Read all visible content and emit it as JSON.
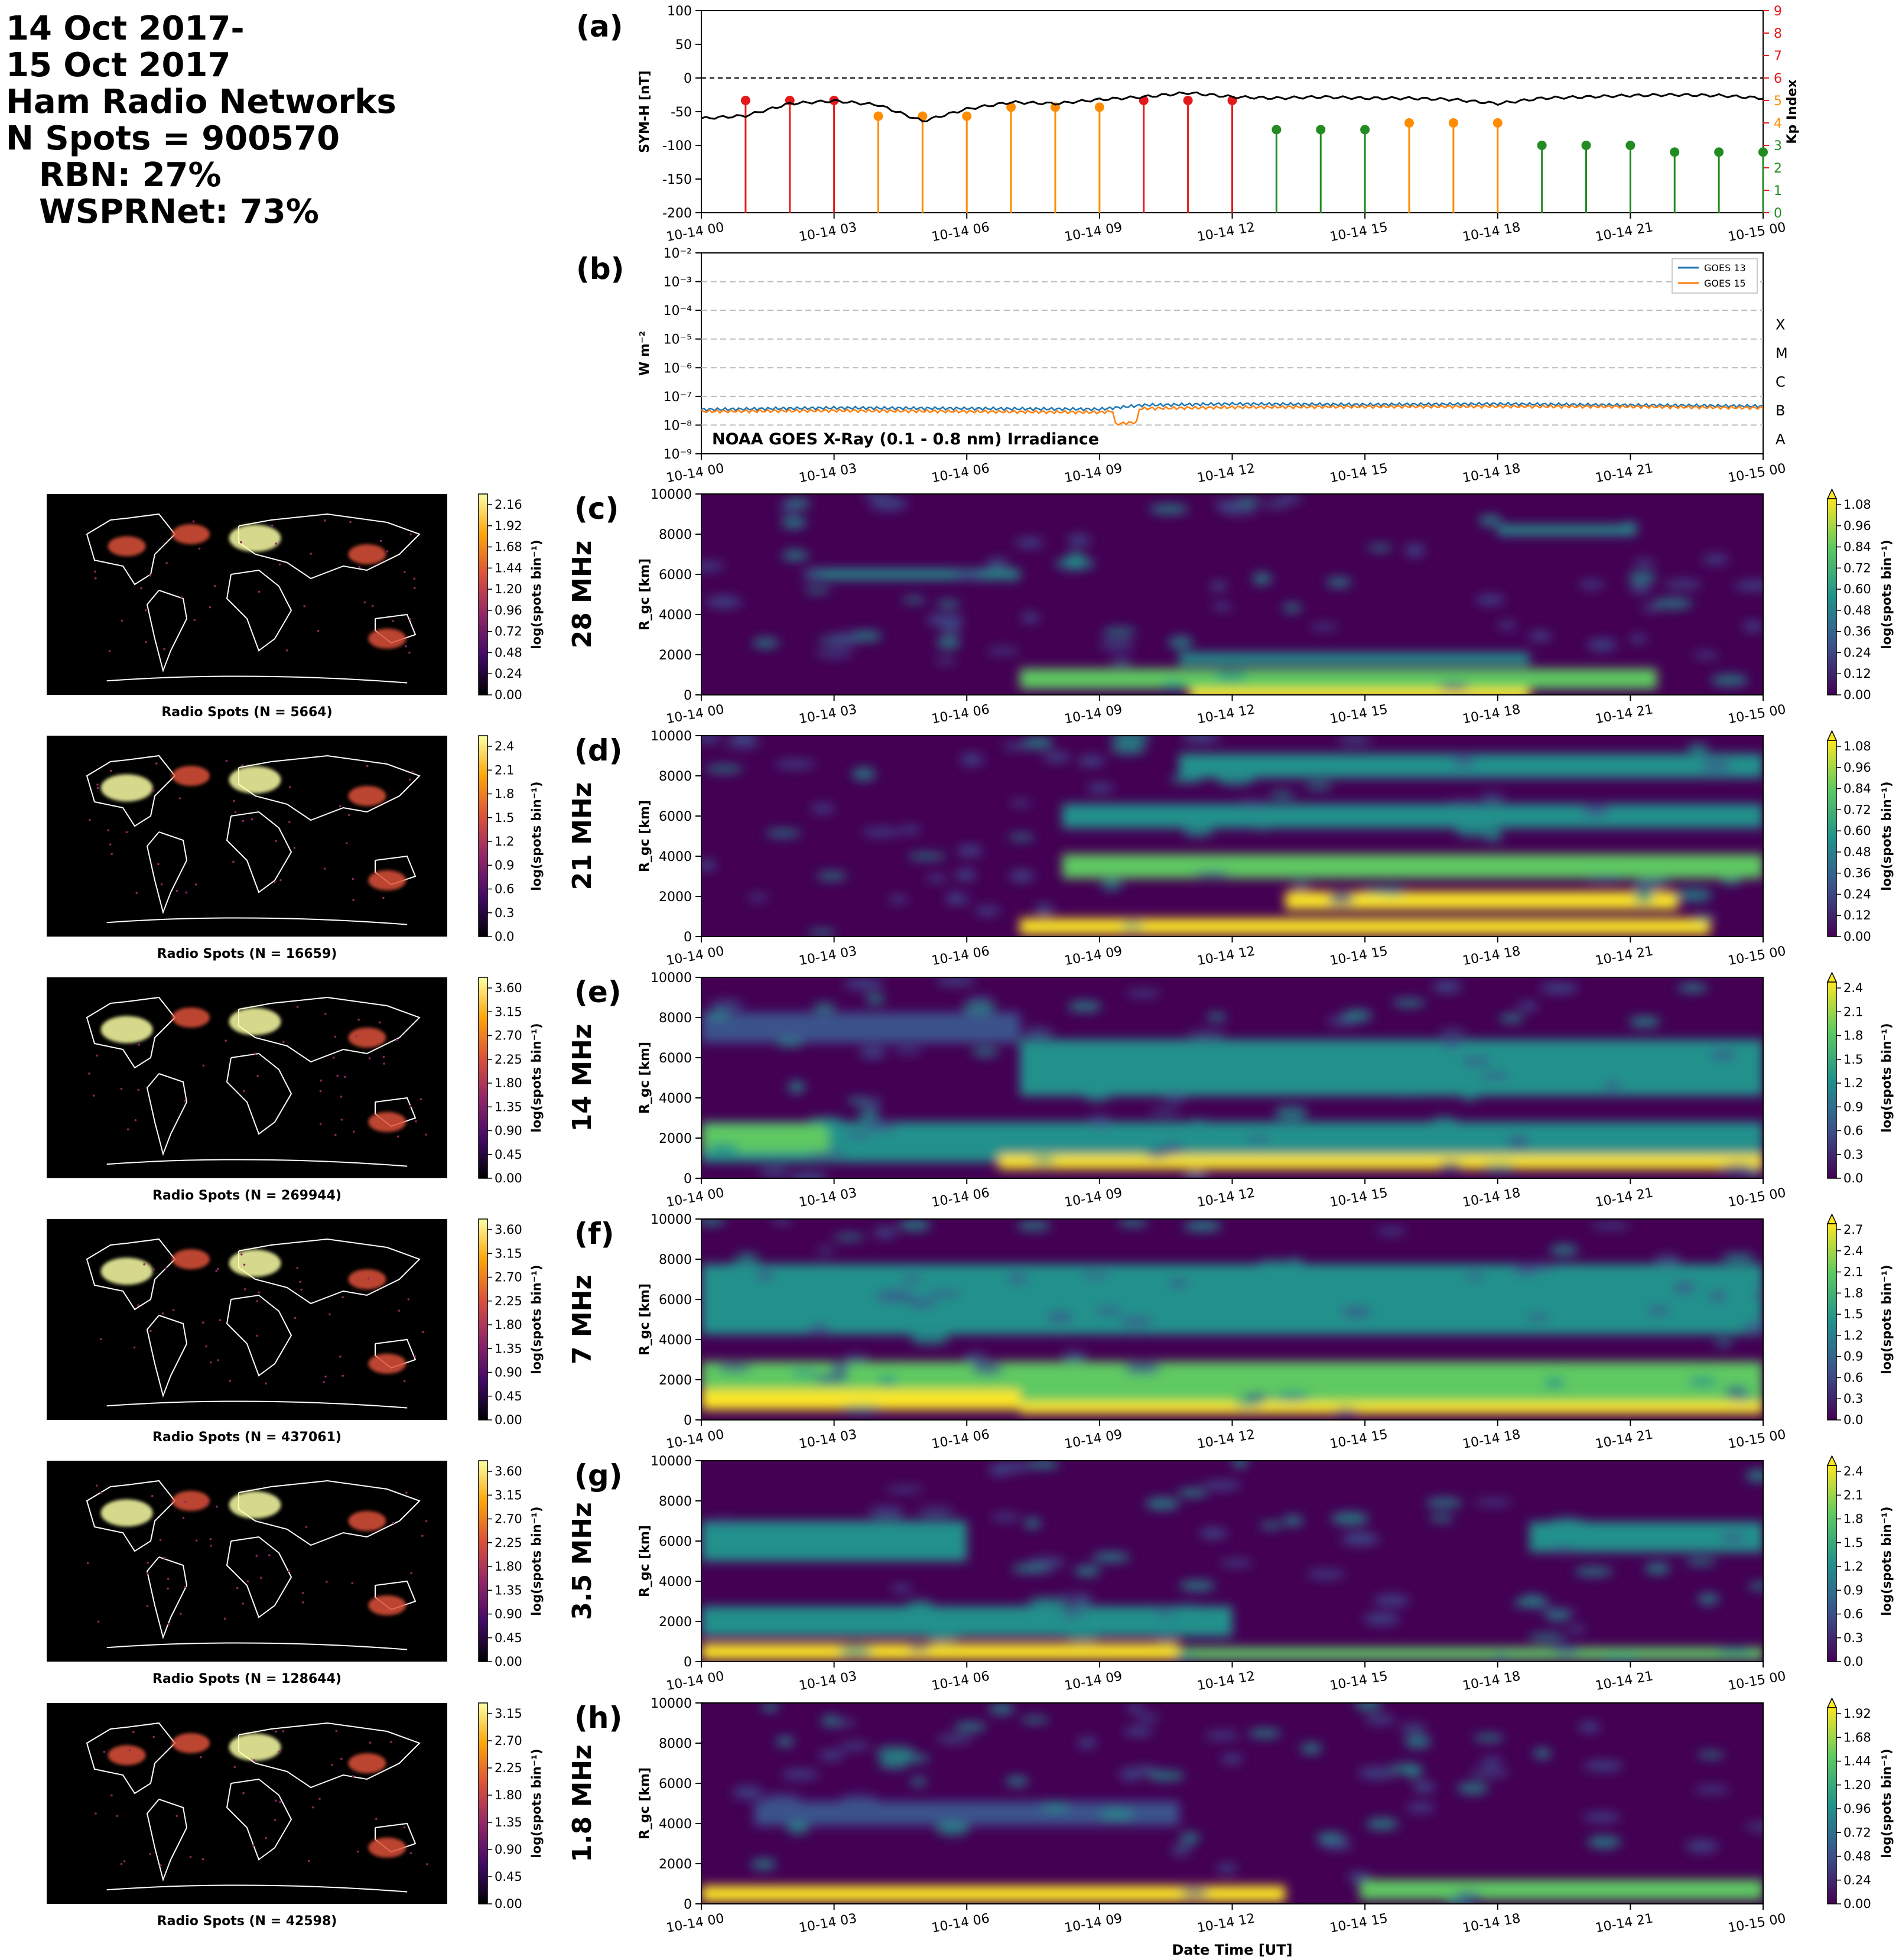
{
  "header": {
    "date_line_1": "14 Oct 2017-",
    "date_line_2": "15 Oct 2017",
    "networks": "Ham Radio Networks",
    "n_spots": "N Spots = 900570",
    "rbn": "RBN: 27%",
    "wsprnet": "WSPRNet: 73%"
  },
  "time_ticks": [
    "10-14 00",
    "10-14 03",
    "10-14 06",
    "10-14 09",
    "10-14 12",
    "10-14 15",
    "10-14 18",
    "10-14 21",
    "10-15 00"
  ],
  "panel_a": {
    "label": "(a)",
    "left_ylabel": "SYM-H [nT]",
    "right_ylabel": "Kp Index",
    "left_yticks": [
      "100",
      "50",
      "0",
      "-50",
      "-100",
      "-150",
      "-200"
    ],
    "right_yticks": [
      "9",
      "8",
      "7",
      "6",
      "5",
      "4",
      "3",
      "2",
      "1",
      "0"
    ]
  },
  "panel_b": {
    "label": "(b)",
    "ylabel": "W m⁻²",
    "yticks": [
      "10⁻²",
      "10⁻³",
      "10⁻⁴",
      "10⁻⁵",
      "10⁻⁶",
      "10⁻⁷",
      "10⁻⁸",
      "10⁻⁹"
    ],
    "class_labels": [
      "X",
      "M",
      "C",
      "B",
      "A"
    ],
    "legend": [
      "GOES 13",
      "GOES 15"
    ],
    "annotation": "NOAA GOES X-Ray (0.1 - 0.8 nm) Irradiance"
  },
  "bands": [
    {
      "label": "(c)",
      "band": "28 MHz",
      "map_title": "Radio Spots (N = 5664)",
      "map_ticks": [
        "2.16",
        "1.92",
        "1.68",
        "1.44",
        "1.20",
        "0.96",
        "0.72",
        "0.48",
        "0.24",
        "0.00"
      ],
      "cb_ticks": [
        "1.08",
        "0.96",
        "0.84",
        "0.72",
        "0.60",
        "0.48",
        "0.36",
        "0.24",
        "0.12",
        "0.00"
      ]
    },
    {
      "label": "(d)",
      "band": "21 MHz",
      "map_title": "Radio Spots (N = 16659)",
      "map_ticks": [
        "2.4",
        "2.1",
        "1.8",
        "1.5",
        "1.2",
        "0.9",
        "0.6",
        "0.3",
        "0.0"
      ],
      "cb_ticks": [
        "1.08",
        "0.96",
        "0.84",
        "0.72",
        "0.60",
        "0.48",
        "0.36",
        "0.24",
        "0.12",
        "0.00"
      ]
    },
    {
      "label": "(e)",
      "band": "14 MHz",
      "map_title": "Radio Spots (N = 269944)",
      "map_ticks": [
        "3.60",
        "3.15",
        "2.70",
        "2.25",
        "1.80",
        "1.35",
        "0.90",
        "0.45",
        "0.00"
      ],
      "cb_ticks": [
        "2.4",
        "2.1",
        "1.8",
        "1.5",
        "1.2",
        "0.9",
        "0.6",
        "0.3",
        "0.0"
      ]
    },
    {
      "label": "(f)",
      "band": "7 MHz",
      "map_title": "Radio Spots (N = 437061)",
      "map_ticks": [
        "3.60",
        "3.15",
        "2.70",
        "2.25",
        "1.80",
        "1.35",
        "0.90",
        "0.45",
        "0.00"
      ],
      "cb_ticks": [
        "2.7",
        "2.4",
        "2.1",
        "1.8",
        "1.5",
        "1.2",
        "0.9",
        "0.6",
        "0.3",
        "0.0"
      ]
    },
    {
      "label": "(g)",
      "band": "3.5 MHz",
      "map_title": "Radio Spots (N = 128644)",
      "map_ticks": [
        "3.60",
        "3.15",
        "2.70",
        "2.25",
        "1.80",
        "1.35",
        "0.90",
        "0.45",
        "0.00"
      ],
      "cb_ticks": [
        "2.4",
        "2.1",
        "1.8",
        "1.5",
        "1.2",
        "0.9",
        "0.6",
        "0.3",
        "0.0"
      ]
    },
    {
      "label": "(h)",
      "band": "1.8 MHz",
      "map_title": "Radio Spots (N = 42598)",
      "map_ticks": [
        "3.15",
        "2.70",
        "2.25",
        "1.80",
        "1.35",
        "0.90",
        "0.45",
        "0.00"
      ],
      "cb_ticks": [
        "1.92",
        "1.68",
        "1.44",
        "1.20",
        "0.96",
        "0.72",
        "0.48",
        "0.24",
        "0.00"
      ]
    }
  ],
  "rgc_label": "R_gc [km]",
  "rgc_ticks": [
    "10000",
    "8000",
    "6000",
    "4000",
    "2000",
    "0"
  ],
  "cb_label": "log(spots bin⁻¹)",
  "xlabel": "Date Time [UT]",
  "colors": {
    "sym_h": "#000000",
    "goes13": "#1f77b4",
    "goes15": "#ff7f0e",
    "kp_red": "#e31a1c",
    "kp_orange": "#ff8c00",
    "kp_green": "#228b22"
  },
  "chart_data": [
    {
      "type": "line",
      "panel": "a",
      "ylabel": "SYM-H [nT]",
      "ylim": [
        -200,
        100
      ],
      "x": [
        "10-14 00",
        "10-14 01",
        "10-14 02",
        "10-14 03",
        "10-14 04",
        "10-14 05",
        "10-14 06",
        "10-14 07",
        "10-14 08",
        "10-14 09",
        "10-14 10",
        "10-14 11",
        "10-14 12",
        "10-14 13",
        "10-14 14",
        "10-14 15",
        "10-14 16",
        "10-14 17",
        "10-14 18",
        "10-14 19",
        "10-14 20",
        "10-14 21",
        "10-14 22",
        "10-14 23",
        "10-15 00"
      ],
      "series": [
        {
          "values": [
            -60,
            -56,
            -38,
            -34,
            -40,
            -64,
            -46,
            -36,
            -38,
            -32,
            -28,
            -22,
            -28,
            -30,
            -28,
            -30,
            -30,
            -32,
            -38,
            -30,
            -28,
            -26,
            -25,
            -26,
            -30
          ]
        }
      ]
    },
    {
      "type": "bar",
      "panel": "a",
      "ylabel": "Kp Index",
      "ylim": [
        0,
        9
      ],
      "x": [
        "10-14 00",
        "10-14 01",
        "10-14 02",
        "10-14 03",
        "10-14 04",
        "10-14 05",
        "10-14 06",
        "10-14 07",
        "10-14 08",
        "10-14 09",
        "10-14 10",
        "10-14 11",
        "10-14 12",
        "10-14 13",
        "10-14 14",
        "10-14 15",
        "10-14 16",
        "10-14 17",
        "10-14 18",
        "10-14 19",
        "10-14 20",
        "10-14 21",
        "10-14 22",
        "10-14 23"
      ],
      "values": [
        5,
        5,
        5,
        4.3,
        4.3,
        4.3,
        4.7,
        4.7,
        4.7,
        5,
        5,
        5,
        3.7,
        3.7,
        3.7,
        4,
        4,
        4,
        3,
        3,
        3,
        2.7,
        2.7,
        2.7
      ]
    },
    {
      "type": "line",
      "panel": "b",
      "ylabel": "W m⁻²",
      "yscale": "log",
      "ylim": [
        1e-09,
        0.01
      ],
      "x": [
        "10-14 00",
        "10-14 03",
        "10-14 06",
        "10-14 09",
        "10-14 10",
        "10-14 12",
        "10-14 15",
        "10-14 18",
        "10-14 21",
        "10-15 00"
      ],
      "series": [
        {
          "name": "GOES 13",
          "values": [
            3.5e-08,
            4e-08,
            3.8e-08,
            3.6e-08,
            5e-08,
            5.5e-08,
            5.2e-08,
            5.5e-08,
            5e-08,
            4.6e-08
          ]
        },
        {
          "name": "GOES 15",
          "values": [
            3e-08,
            3.2e-08,
            3e-08,
            2.8e-08,
            3.8e-08,
            4.2e-08,
            4.4e-08,
            4.5e-08,
            4.4e-08,
            4e-08
          ]
        }
      ]
    }
  ]
}
